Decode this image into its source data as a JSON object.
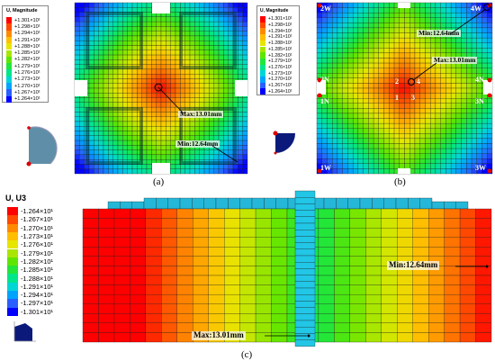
{
  "panel_a": {
    "legend": {
      "title": "U, Magnitude",
      "entries": [
        "+1.301×10¹",
        "+1.298×10¹",
        "+1.294×10¹",
        "+1.291×10¹",
        "+1.288×10¹",
        "+1.285×10¹",
        "+1.282×10¹",
        "+1.279×10¹",
        "+1.276×10¹",
        "+1.273×10¹",
        "+1.270×10¹",
        "+1.267×10¹",
        "+1.264×10¹"
      ]
    },
    "max_label": "Max:13.01mm",
    "min_label": "Min:12.64mm",
    "caption": "(a)"
  },
  "panel_b": {
    "legend": {
      "title": "U, Magnitude",
      "entries": [
        "+1.301×10¹",
        "+1.298×10¹",
        "+1.294×10¹",
        "+1.291×10¹",
        "+1.288×10¹",
        "+1.285×10¹",
        "+1.282×10¹",
        "+1.279×10¹",
        "+1.276×10¹",
        "+1.273×10¹",
        "+1.270×10¹",
        "+1.267×10¹",
        "+1.264×10¹"
      ]
    },
    "max_label": "Max:13.01mm",
    "min_label": "Min:12.64mm",
    "corners": {
      "top_left": "2W",
      "top_right": "4W",
      "mid_left_top": "2N",
      "mid_right_top": "4N",
      "mid_left_bottom": "1N",
      "mid_right_bottom": "3N",
      "bottom_left": "1W",
      "bottom_right": "3W"
    },
    "center_nums": [
      "1",
      "2",
      "3",
      "4"
    ],
    "caption": "(b)"
  },
  "panel_c": {
    "legend": {
      "title": "U, U3",
      "entries": [
        "-1.264×10¹",
        "-1.267×10¹",
        "-1.270×10¹",
        "-1.273×10¹",
        "-1.276×10¹",
        "-1.279×10¹",
        "-1.282×10¹",
        "-1.285×10¹",
        "-1.288×10¹",
        "-1.291×10¹",
        "-1.294×10¹",
        "-1.297×10¹",
        "-1.301×10¹"
      ]
    },
    "max_label": "Max:13.01mm",
    "min_label": "Min:12.64mm",
    "caption": "(c)"
  },
  "colors": {
    "scale": [
      "#ff0000",
      "#ff4a00",
      "#ff8a00",
      "#ffbf00",
      "#e6e600",
      "#a8e600",
      "#5fe600",
      "#22e63a",
      "#00e68a",
      "#00d6d6",
      "#00a4ff",
      "#2a5fff",
      "#0000ff"
    ]
  }
}
